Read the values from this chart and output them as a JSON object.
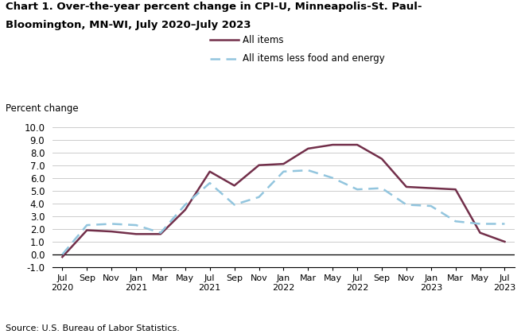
{
  "title_line1": "Chart 1. Over-the-year percent change in CPI-U, Minneapolis-St. Paul-",
  "title_line2": "Bloomington, MN-WI, July 2020–July 2023",
  "ylabel": "Percent change",
  "source": "Source: U.S. Bureau of Labor Statistics.",
  "ylim": [
    -1.0,
    10.0
  ],
  "yticks": [
    -1.0,
    0.0,
    1.0,
    2.0,
    3.0,
    4.0,
    5.0,
    6.0,
    7.0,
    8.0,
    9.0,
    10.0
  ],
  "x_labels": [
    "Jul\n2020",
    "Sep",
    "Nov",
    "Jan\n2021",
    "Mar",
    "May",
    "Jul\n2021",
    "Sep",
    "Nov",
    "Jan\n2022",
    "Mar",
    "May",
    "Jul\n2022",
    "Sep",
    "Nov",
    "Jan\n2023",
    "Mar",
    "May",
    "Jul\n2023"
  ],
  "all_items": [
    -0.2,
    1.9,
    1.8,
    1.6,
    1.6,
    3.5,
    6.5,
    5.4,
    7.0,
    7.1,
    8.3,
    8.6,
    8.6,
    7.5,
    5.3,
    5.2,
    5.1,
    1.7,
    1.0
  ],
  "all_items_less": [
    0.0,
    2.3,
    2.4,
    2.3,
    1.7,
    3.9,
    5.6,
    3.9,
    4.5,
    6.5,
    6.6,
    6.0,
    5.1,
    5.2,
    3.9,
    3.8,
    2.6,
    2.4,
    2.4
  ],
  "all_items_color": "#722F4A",
  "all_items_less_color": "#92C5DE",
  "background_color": "#ffffff",
  "grid_color": "#cccccc",
  "legend_solid_label": "All items",
  "legend_dashed_label": "All items less food and energy"
}
